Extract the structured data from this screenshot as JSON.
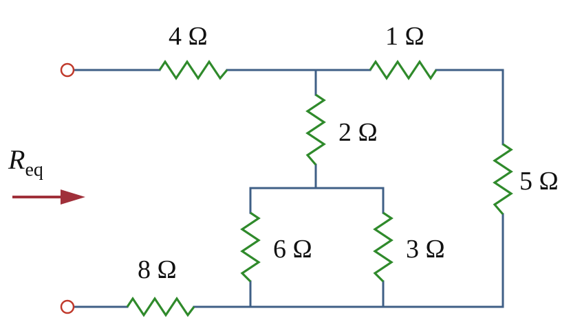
{
  "colors": {
    "wire": "#3f5f86",
    "resistor": "#2f8a2b",
    "terminal": "#c0392b",
    "arrow": "#a0303a",
    "text": "#111111"
  },
  "resistors": {
    "r4": "4 Ω",
    "r1": "1 Ω",
    "r2": "2 Ω",
    "r5": "5 Ω",
    "r6": "6 Ω",
    "r3": "3 Ω",
    "r8": "8 Ω"
  },
  "req": {
    "symbol": "R",
    "subscript": "eq"
  }
}
